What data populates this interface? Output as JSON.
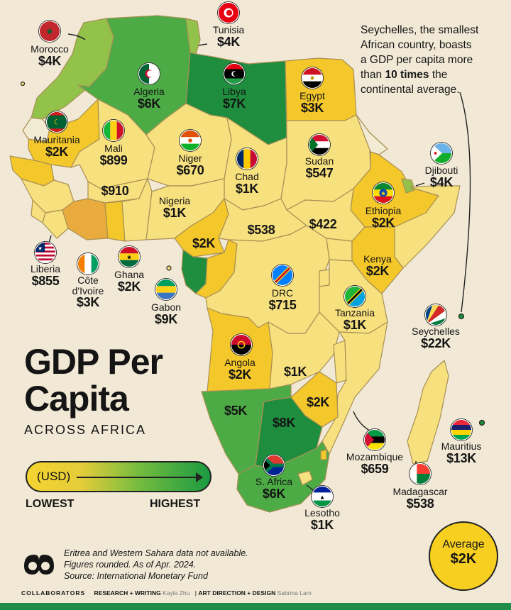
{
  "title": {
    "line1": "GDP Per",
    "line2": "Capita",
    "subtitle": "ACROSS AFRICA"
  },
  "note": {
    "line1": "Seychelles, the smallest",
    "line2": "African country, boasts",
    "line3": "a GDP per capita more",
    "line4_pre": "than ",
    "line4_bold": "10 times",
    "line4_post": " the",
    "line5": "continental average."
  },
  "legend": {
    "unit": "(USD)",
    "low": "LOWEST",
    "high": "HIGHEST"
  },
  "average": {
    "label": "Average",
    "value": "$2K"
  },
  "footnotes": {
    "line1": "Eritrea and Western Sahara data not available.",
    "line2": "Figures rounded. As of Apr. 2024.",
    "line3": "Source: International Monetary Fund"
  },
  "credits": {
    "heading": "COLLABORATORS",
    "research_role": "RESEARCH + WRITING",
    "research_name": "Kayla Zhu",
    "sep": "|",
    "art_role": "ART DIRECTION + DESIGN",
    "art_name": "Sabrina Lam"
  },
  "countries": {
    "morocco": {
      "name": "Morocco",
      "value": "$4K"
    },
    "tunisia": {
      "name": "Tunisia",
      "value": "$4K"
    },
    "algeria": {
      "name": "Algeria",
      "value": "$6K"
    },
    "libya": {
      "name": "Libya",
      "value": "$7K"
    },
    "egypt": {
      "name": "Egypt",
      "value": "$3K"
    },
    "mauritania": {
      "name": "Mauritania",
      "value": "$2K"
    },
    "mali": {
      "name": "Mali",
      "value": "$899"
    },
    "niger": {
      "name": "Niger",
      "value": "$670"
    },
    "chad": {
      "name": "Chad",
      "value": "$1K"
    },
    "sudan": {
      "name": "Sudan",
      "value": "$547"
    },
    "djibouti": {
      "name": "Djibouti",
      "value": "$4K"
    },
    "ethiopia": {
      "name": "Ethiopia",
      "value": "$2K"
    },
    "nigeria": {
      "name": "Nigeria",
      "value": "$1K"
    },
    "liberia": {
      "name": "Liberia",
      "value": "$855"
    },
    "cote_divoire": {
      "name1": "Côte",
      "name2": "d'Ivoire",
      "value": "$3K"
    },
    "ghana": {
      "name": "Ghana",
      "value": "$2K"
    },
    "gabon": {
      "name": "Gabon",
      "value": "$9K"
    },
    "drc": {
      "name": "DRC",
      "value": "$715"
    },
    "kenya": {
      "name": "Kenya",
      "value": "$2K"
    },
    "tanzania": {
      "name": "Tanzania",
      "value": "$1K"
    },
    "seychelles": {
      "name": "Seychelles",
      "value": "$22K"
    },
    "angola": {
      "name": "Angola",
      "value": "$2K"
    },
    "mozambique": {
      "name": "Mozambique",
      "value": "$659"
    },
    "mauritius": {
      "name": "Mauritius",
      "value": "$13K"
    },
    "madagascar": {
      "name": "Madagascar",
      "value": "$538"
    },
    "south_africa": {
      "name": "S. Africa",
      "value": "$6K"
    },
    "lesotho": {
      "name": "Lesotho",
      "value": "$1K"
    }
  },
  "unnamed_values": {
    "burkina": "$910",
    "cameroon": "$2K",
    "car": "$538",
    "south_sudan": "$422",
    "zambia": "$1K",
    "namibia": "$5K",
    "botswana": "$8K",
    "zimbabwe": "$2K"
  },
  "colors": {
    "background": "#f1e9d6",
    "low": "#f7e07e",
    "mid": "#f4c82a",
    "orange": "#e9ab3e",
    "light_green": "#93c24a",
    "green": "#4cab45",
    "dark_green": "#1e8e3e",
    "border": "#b79e5e"
  }
}
